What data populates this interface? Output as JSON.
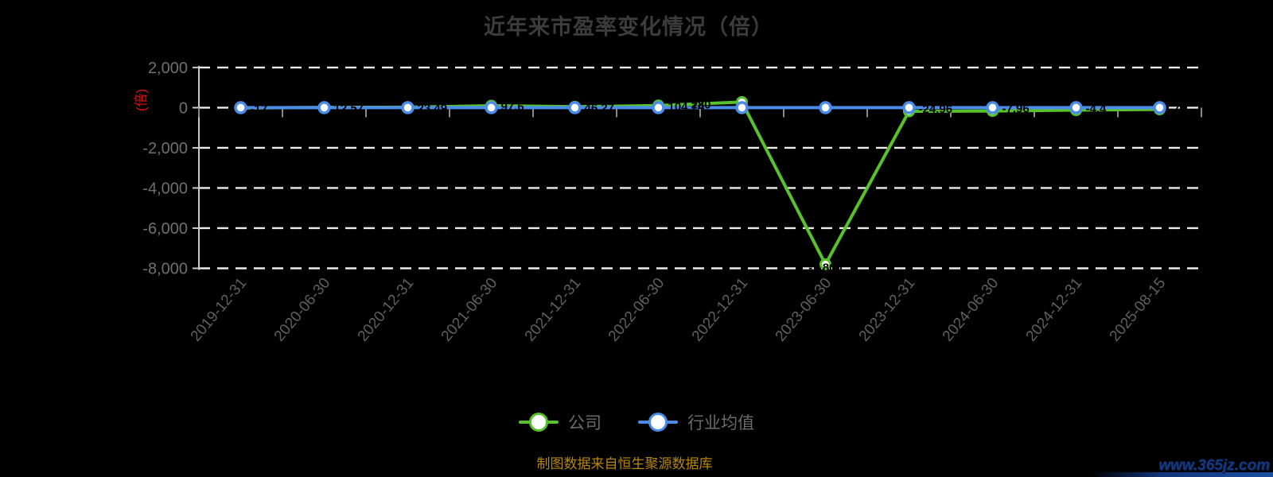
{
  "title": "近年来市盈率变化情况（倍）",
  "y_axis_unit": "(倍)",
  "footer_note": "制图数据来自恒生聚源数据库",
  "watermark": "www.365jz.com",
  "legend": [
    {
      "label": "公司",
      "color": "#58c22c"
    },
    {
      "label": "行业均值",
      "color": "#4a8ce8"
    }
  ],
  "colors": {
    "background": "#000000",
    "title": "#3c3c3c",
    "company_series": "#58c22c",
    "industry_series": "#4a8ce8",
    "gridline": "#ececec",
    "axis_line": "#c8c8c8",
    "y_tick_label": "#6f6f6f",
    "x_tick_label": "#5f5f5f",
    "unit_label_red": "#e01010",
    "data_label": "#000000",
    "footer_gold": "#b8860b",
    "watermark_navy": "#16387f"
  },
  "chart_data": {
    "type": "line",
    "categories": [
      "2019-12-31",
      "2020-06-30",
      "2020-12-31",
      "2021-06-30",
      "2021-12-31",
      "2022-06-30",
      "2022-12-31",
      "2023-06-30",
      "2023-12-31",
      "2024-06-30",
      "2024-12-31",
      "2025-08-15"
    ],
    "series": [
      {
        "name": "公司",
        "color": "#58c22c",
        "values": [
          -17.0,
          12.57,
          23.49,
          97.6,
          46.27,
          104.74,
          280.0,
          -7800.0,
          -24.96,
          -7.96,
          -4.4,
          -7.0
        ],
        "labels": [
          "-17",
          "12.57",
          "23.49",
          "97.6",
          "46.27",
          "104.74",
          "280",
          "-7,800",
          "-24.96",
          "-7.96",
          "-4.4",
          "-7"
        ]
      },
      {
        "name": "行业均值",
        "color": "#4a8ce8",
        "values": [
          0,
          0,
          0,
          0,
          0,
          0,
          0,
          0,
          0,
          0,
          0,
          0
        ],
        "labels": []
      }
    ],
    "ylim": [
      -8000,
      2000
    ],
    "yticks": [
      2000,
      0,
      -2000,
      -4000,
      -6000,
      -8000
    ],
    "ytick_labels": [
      "2,000",
      "0",
      "-2,000",
      "-4,000",
      "-6,000",
      "-8,000"
    ],
    "grid": "dashed-white",
    "legend_position": "bottom",
    "x_label_rotation": -50
  }
}
